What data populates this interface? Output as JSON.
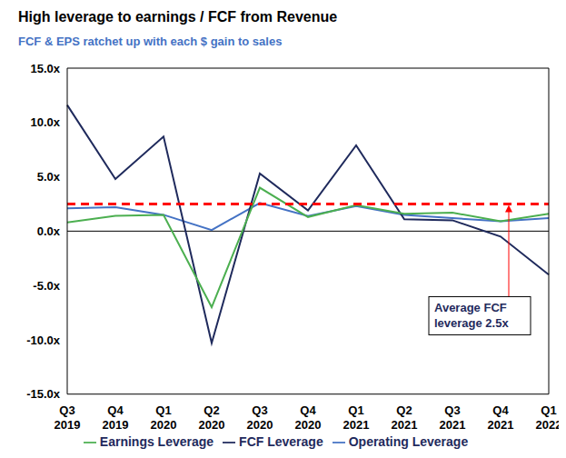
{
  "chart_data": {
    "type": "line",
    "title": "High leverage to earnings / FCF from Revenue",
    "subtitle": "FCF & EPS ratchet up with each $ gain to sales",
    "categories": [
      "Q3 2019",
      "Q4 2019",
      "Q1 2020",
      "Q2 2020",
      "Q3 2020",
      "Q4 2020",
      "Q1 2021",
      "Q2 2021",
      "Q3 2021",
      "Q4 2021",
      "Q1 2022"
    ],
    "series": [
      {
        "name": "Operating Leverage",
        "color": "#4472c4",
        "values": [
          2.1,
          2.2,
          1.5,
          0.1,
          2.6,
          1.4,
          2.3,
          1.5,
          1.2,
          0.9,
          1.2
        ]
      },
      {
        "name": "FCF Leverage",
        "color": "#1f2a5c",
        "values": [
          11.6,
          4.8,
          8.7,
          -10.3,
          5.3,
          1.9,
          7.9,
          1.1,
          1.0,
          -0.5,
          -4.0
        ]
      },
      {
        "name": "Earnings Leverage",
        "color": "#4caf50",
        "values": [
          0.8,
          1.4,
          1.5,
          -7.0,
          4.0,
          1.3,
          2.4,
          1.6,
          1.7,
          0.9,
          1.6
        ]
      }
    ],
    "ylim": [
      -15,
      15
    ],
    "yticks": [
      {
        "value": -15,
        "label": "-15.0x"
      },
      {
        "value": -10,
        "label": "-10.0x"
      },
      {
        "value": -5,
        "label": "-5.0x"
      },
      {
        "value": 0,
        "label": "0.0x"
      },
      {
        "value": 5,
        "label": "5.0x"
      },
      {
        "value": 10,
        "label": "10.0x"
      },
      {
        "value": 15,
        "label": "15.0x"
      }
    ],
    "grid": false,
    "legend": "bottom",
    "annotations": [
      {
        "text": "Average FCF leverage 2.5x",
        "value": 2.5,
        "color": "#ff0000",
        "line_style": "dashed"
      }
    ]
  }
}
